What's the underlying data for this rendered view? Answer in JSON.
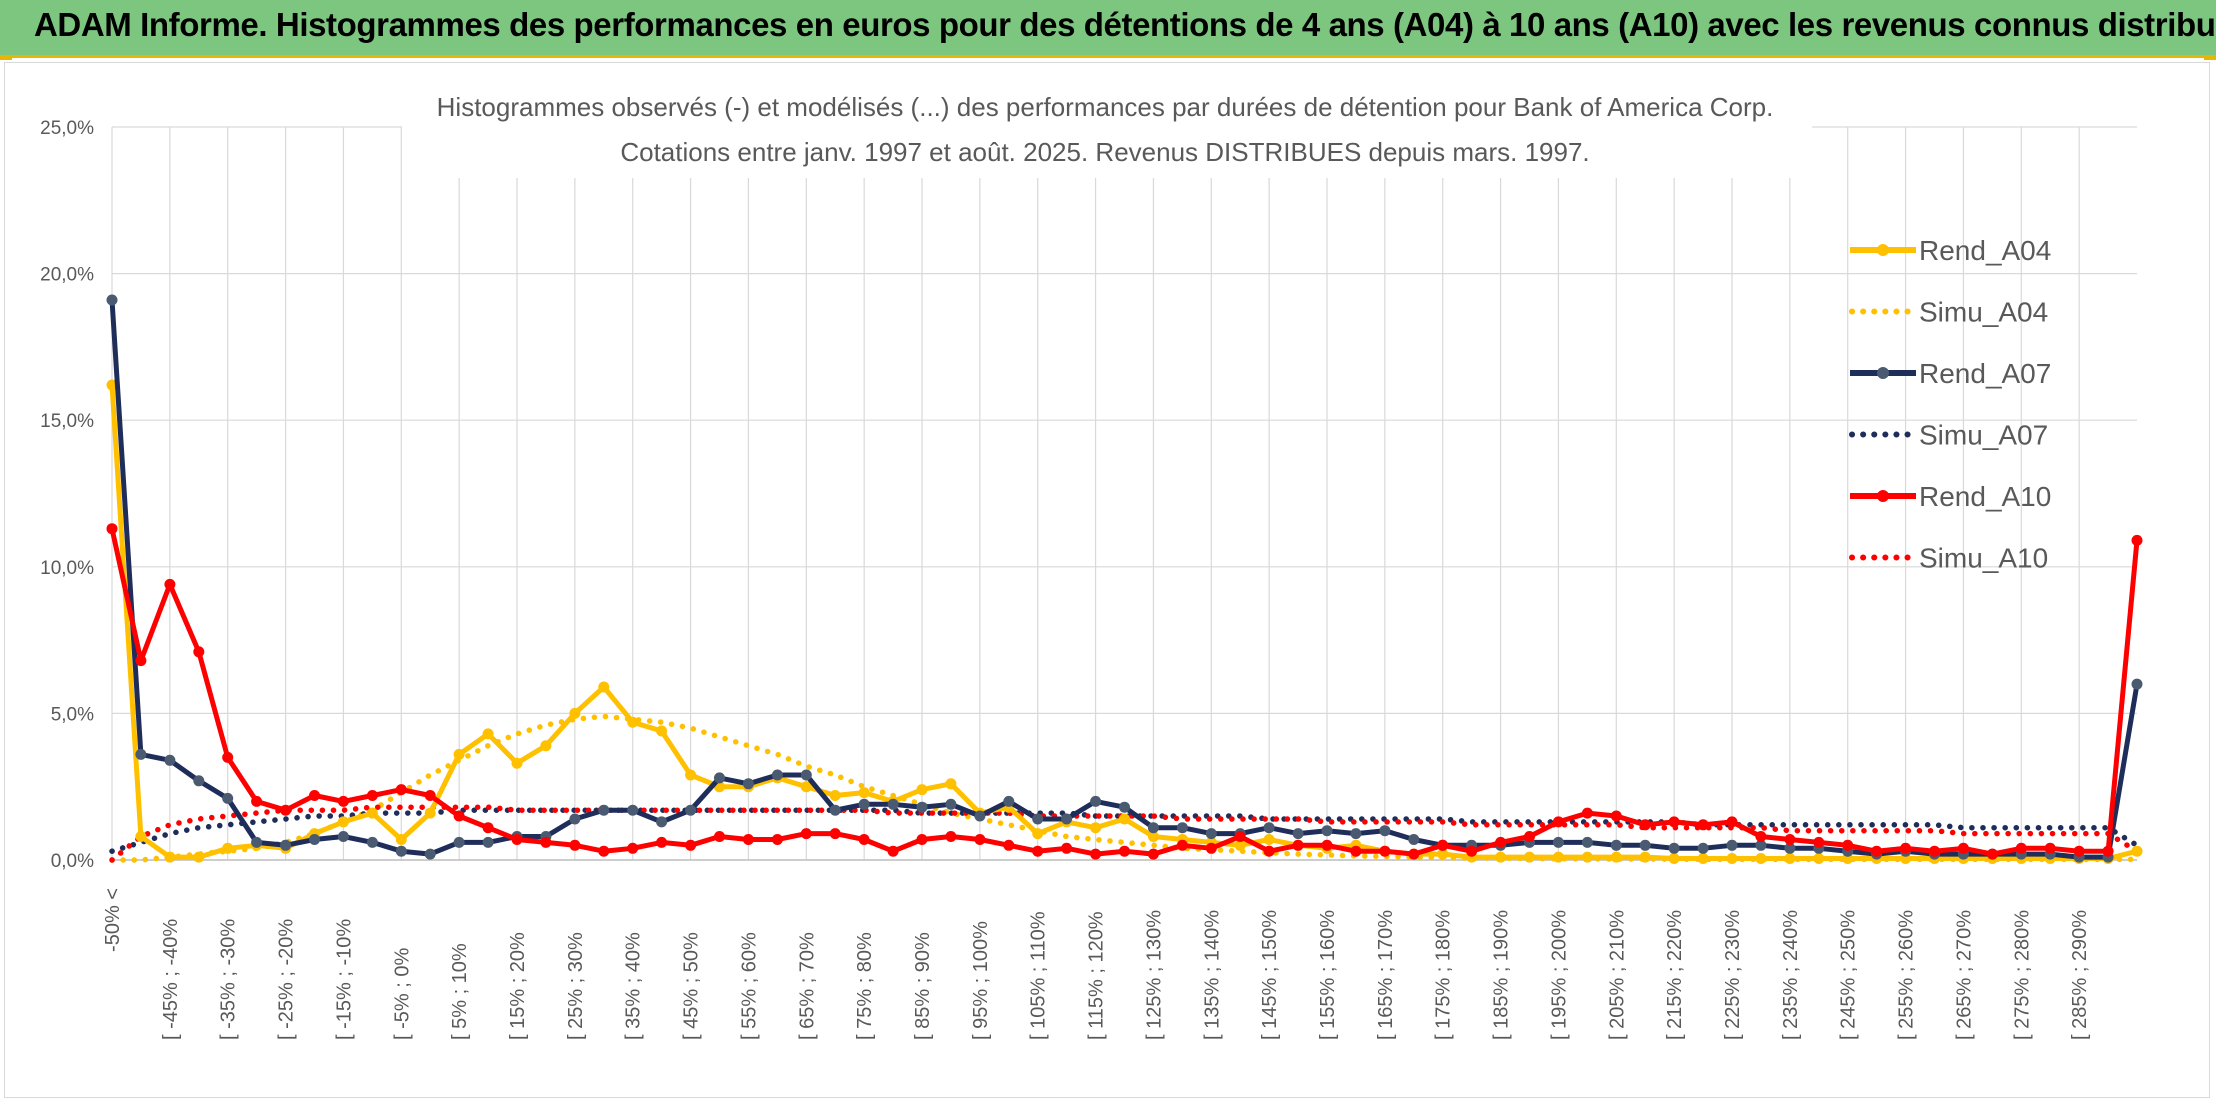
{
  "header": {
    "title": "ADAM Informe. Histogrammes des performances en euros pour des détentions de 4 ans (A04) à 10 ans (A10) avec les revenus connus distribués"
  },
  "chart_data": {
    "type": "line",
    "title": "Histogrammes observés (-) et modélisés (...) des performances par durées de détention pour Bank of America Corp.",
    "subtitle": "Cotations entre janv. 1997 et août. 2025. Revenus DISTRIBUES depuis mars. 1997.",
    "ylim": [
      0,
      25
    ],
    "yticks": [
      "0,0%",
      "5,0%",
      "10,0%",
      "15,0%",
      "20,0%",
      "25,0%"
    ],
    "grid": true,
    "legend_position": "right",
    "colors": {
      "A04": "#ffc000",
      "A07": "#1f2d5a",
      "A07_marker": "#4a5a70",
      "A10": "#ff0000"
    },
    "x_labels": [
      "-50% <",
      "[ -45% ; -40%",
      "[ -35% ; -30%",
      "[ -25% ; -20%",
      "[ -15% ; -10%",
      "[ -5% ; 0%",
      "[ 5% ; 10%",
      "[ 15% ; 20%",
      "[ 25% ; 30%",
      "[ 35% ; 40%",
      "[ 45% ; 50%",
      "[ 55% ; 60%",
      "[ 65% ; 70%",
      "[ 75% ; 80%",
      "[ 85% ; 90%",
      "[ 95% ; 100%",
      "[ 105% ; 110%",
      "[ 115% ; 120%",
      "[ 125% ; 130%",
      "[ 135% ; 140%",
      "[ 145% ; 150%",
      "[ 155% ; 160%",
      "[ 165% ; 170%",
      "[ 175% ; 180%",
      "[ 185% ; 190%",
      "[ 195% ; 200%",
      "[ 205% ; 210%",
      "[ 215% ; 220%",
      "[ 225% ; 230%",
      "[ 235% ; 240%",
      "[ 245% ; 250%",
      "[ 255% ; 260%",
      "[ 265% ; 270%",
      "[ 275% ; 280%",
      "[ 285% ; 290%"
    ],
    "series": [
      {
        "name": "Rend_A04",
        "style": "solid",
        "color": "#ffc000",
        "values": [
          16.2,
          0.8,
          0.1,
          0.1,
          0.4,
          0.5,
          0.4,
          0.9,
          1.3,
          1.6,
          0.7,
          1.6,
          3.6,
          4.3,
          3.3,
          3.9,
          5.0,
          5.9,
          4.7,
          4.4,
          2.9,
          2.5,
          2.5,
          2.8,
          2.5,
          2.2,
          2.3,
          2.0,
          2.4,
          2.6,
          1.6,
          1.8,
          0.9,
          1.3,
          1.1,
          1.4,
          0.8,
          0.7,
          0.6,
          0.5,
          0.7,
          0.5,
          0.4,
          0.5,
          0.3,
          0.2,
          0.2,
          0.1,
          0.1,
          0.1,
          0.1,
          0.1,
          0.1,
          0.1,
          0.05,
          0.05,
          0.05,
          0.05,
          0.05,
          0.05,
          0.05,
          0.05,
          0.05,
          0.05,
          0.05,
          0.05,
          0.05,
          0.05,
          0.05,
          0.05,
          0.3
        ]
      },
      {
        "name": "Simu_A04",
        "style": "dotted",
        "color": "#ffc000",
        "values": [
          0.0,
          0.0,
          0.1,
          0.2,
          0.3,
          0.4,
          0.6,
          0.9,
          1.3,
          1.7,
          2.3,
          2.9,
          3.4,
          3.9,
          4.3,
          4.6,
          4.8,
          4.9,
          4.8,
          4.7,
          4.5,
          4.2,
          3.9,
          3.6,
          3.2,
          2.9,
          2.5,
          2.2,
          1.9,
          1.6,
          1.4,
          1.2,
          1.0,
          0.8,
          0.7,
          0.6,
          0.5,
          0.4,
          0.35,
          0.3,
          0.25,
          0.2,
          0.17,
          0.14,
          0.12,
          0.1,
          0.08,
          0.07,
          0.06,
          0.05,
          0.04,
          0.04,
          0.03,
          0.03,
          0.03,
          0.02,
          0.02,
          0.02,
          0.02,
          0.02,
          0.02,
          0.02,
          0.02,
          0.02,
          0.02,
          0.02,
          0.02,
          0.02,
          0.02,
          0.02,
          0.02
        ]
      },
      {
        "name": "Rend_A07",
        "style": "solid",
        "color": "#1f2d5a",
        "values": [
          19.1,
          3.6,
          3.4,
          2.7,
          2.1,
          0.6,
          0.5,
          0.7,
          0.8,
          0.6,
          0.3,
          0.2,
          0.6,
          0.6,
          0.8,
          0.8,
          1.4,
          1.7,
          1.7,
          1.3,
          1.7,
          2.8,
          2.6,
          2.9,
          2.9,
          1.7,
          1.9,
          1.9,
          1.8,
          1.9,
          1.5,
          2.0,
          1.4,
          1.4,
          2.0,
          1.8,
          1.1,
          1.1,
          0.9,
          0.9,
          1.1,
          0.9,
          1.0,
          0.9,
          1.0,
          0.7,
          0.5,
          0.5,
          0.5,
          0.6,
          0.6,
          0.6,
          0.5,
          0.5,
          0.4,
          0.4,
          0.5,
          0.5,
          0.4,
          0.4,
          0.3,
          0.2,
          0.3,
          0.2,
          0.2,
          0.2,
          0.2,
          0.2,
          0.1,
          0.1,
          6.0
        ]
      },
      {
        "name": "Simu_A07",
        "style": "dotted",
        "color": "#1f2d5a",
        "values": [
          0.3,
          0.6,
          0.9,
          1.1,
          1.2,
          1.3,
          1.4,
          1.5,
          1.5,
          1.6,
          1.6,
          1.6,
          1.7,
          1.7,
          1.7,
          1.7,
          1.7,
          1.7,
          1.7,
          1.7,
          1.7,
          1.7,
          1.7,
          1.7,
          1.7,
          1.7,
          1.7,
          1.7,
          1.6,
          1.6,
          1.6,
          1.6,
          1.6,
          1.6,
          1.5,
          1.5,
          1.5,
          1.5,
          1.5,
          1.5,
          1.4,
          1.4,
          1.4,
          1.4,
          1.4,
          1.4,
          1.4,
          1.3,
          1.3,
          1.3,
          1.3,
          1.3,
          1.3,
          1.3,
          1.3,
          1.2,
          1.2,
          1.2,
          1.2,
          1.2,
          1.2,
          1.2,
          1.2,
          1.2,
          1.1,
          1.1,
          1.1,
          1.1,
          1.1,
          1.1,
          0.5
        ]
      },
      {
        "name": "Rend_A10",
        "style": "solid",
        "color": "#ff0000",
        "values": [
          11.3,
          6.8,
          9.4,
          7.1,
          3.5,
          2.0,
          1.7,
          2.2,
          2.0,
          2.2,
          2.4,
          2.2,
          1.5,
          1.1,
          0.7,
          0.6,
          0.5,
          0.3,
          0.4,
          0.6,
          0.5,
          0.8,
          0.7,
          0.7,
          0.9,
          0.9,
          0.7,
          0.3,
          0.7,
          0.8,
          0.7,
          0.5,
          0.3,
          0.4,
          0.2,
          0.3,
          0.2,
          0.5,
          0.4,
          0.8,
          0.3,
          0.5,
          0.5,
          0.3,
          0.3,
          0.2,
          0.5,
          0.3,
          0.6,
          0.8,
          1.3,
          1.6,
          1.5,
          1.2,
          1.3,
          1.2,
          1.3,
          0.8,
          0.7,
          0.6,
          0.5,
          0.3,
          0.4,
          0.3,
          0.4,
          0.2,
          0.4,
          0.4,
          0.3,
          0.3,
          10.9
        ]
      },
      {
        "name": "Simu_A10",
        "style": "dotted",
        "color": "#ff0000",
        "values": [
          0.0,
          0.8,
          1.2,
          1.4,
          1.5,
          1.6,
          1.7,
          1.7,
          1.7,
          1.8,
          1.8,
          1.8,
          1.8,
          1.8,
          1.7,
          1.7,
          1.7,
          1.7,
          1.7,
          1.7,
          1.7,
          1.7,
          1.7,
          1.7,
          1.7,
          1.7,
          1.7,
          1.6,
          1.6,
          1.6,
          1.6,
          1.6,
          1.5,
          1.5,
          1.5,
          1.5,
          1.5,
          1.4,
          1.4,
          1.4,
          1.4,
          1.4,
          1.3,
          1.3,
          1.3,
          1.3,
          1.3,
          1.2,
          1.2,
          1.2,
          1.2,
          1.2,
          1.2,
          1.1,
          1.1,
          1.1,
          1.1,
          1.1,
          1.0,
          1.0,
          1.0,
          1.0,
          1.0,
          1.0,
          0.9,
          0.9,
          0.9,
          0.9,
          0.9,
          0.9,
          0.3
        ]
      }
    ]
  }
}
